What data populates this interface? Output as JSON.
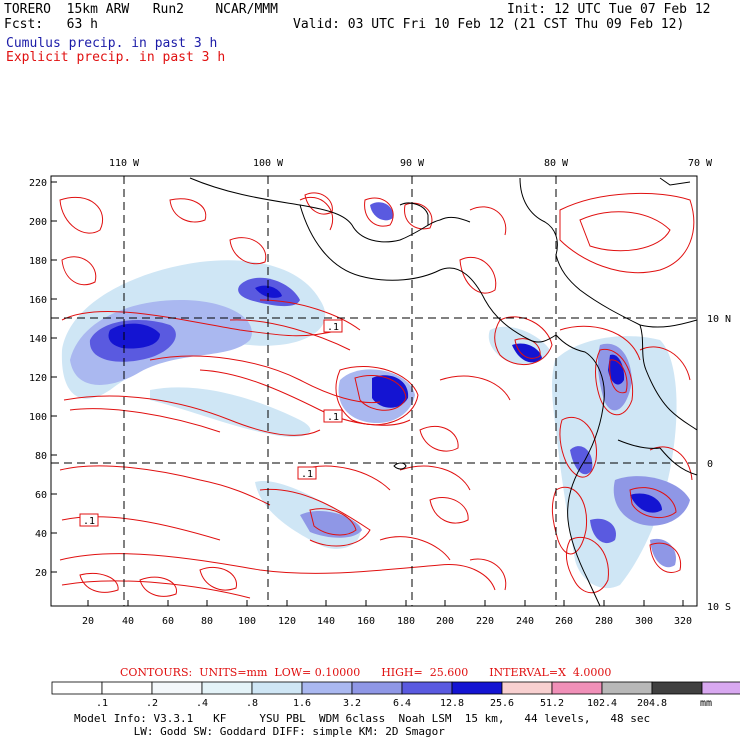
{
  "header": {
    "model": "TORERO  15km ARW   Run2    NCAR/MMM",
    "init": "Init: 12 UTC Tue 07 Feb 12",
    "fcst": "Fcst:   63 h",
    "valid": "Valid: 03 UTC Fri 10 Feb 12 (21 CST Thu 09 Feb 12)",
    "field1": "Cumulus precip. in past 3 h",
    "field2": "Explicit precip. in past 3 h"
  },
  "map": {
    "top_ticks": [
      "110 W",
      "100 W",
      "90 W",
      "80 W",
      "70 W"
    ],
    "right_ticks": [
      "10 N",
      "0",
      "10 S"
    ],
    "y_ticks": [
      "220",
      "200",
      "180",
      "160",
      "140",
      "120",
      "100",
      "80",
      "60",
      "40",
      "20"
    ],
    "x_ticks": [
      "20",
      "40",
      "60",
      "80",
      "100",
      "120",
      "140",
      "160",
      "180",
      "200",
      "220",
      "240",
      "260",
      "280",
      "300",
      "320"
    ],
    "box_label": ".1",
    "colors": {
      "contour": "#e01010",
      "coast": "#000000",
      "light_blue": "#cde8f5",
      "mid_blue": "#8f97e6",
      "blue": "#5050dc",
      "dark_blue": "#1414d2",
      "grid": "#000000"
    }
  },
  "colorbar": {
    "labels": [
      ".1",
      ".2",
      ".4",
      ".8",
      "1.6",
      "3.2",
      "6.4",
      "12.8",
      "25.6",
      "51.2",
      "102.4",
      "204.8"
    ],
    "unit": "mm",
    "colors": [
      "#ffffff",
      "#ffffff",
      "#f4f8fb",
      "#e4f3f8",
      "#cfe6f5",
      "#aab8f0",
      "#8f97e6",
      "#5a5ae0",
      "#1414d2",
      "#f8d0d0",
      "#f090b8",
      "#b8b8b8",
      "#404040",
      "#d8a8f0"
    ]
  },
  "contours_line": "CONTOURS:  UNITS=mm  LOW= 0.10000      HIGH=  25.600      INTERVAL=X  4.0000",
  "model_info": {
    "line1": "Model Info: V3.3.1   KF     YSU PBL  WDM 6class  Noah LSM  15 km,   44 levels,   48 sec",
    "line2": "         LW: Godd SW: Goddard DIFF: simple KM: 2D Smagor"
  }
}
